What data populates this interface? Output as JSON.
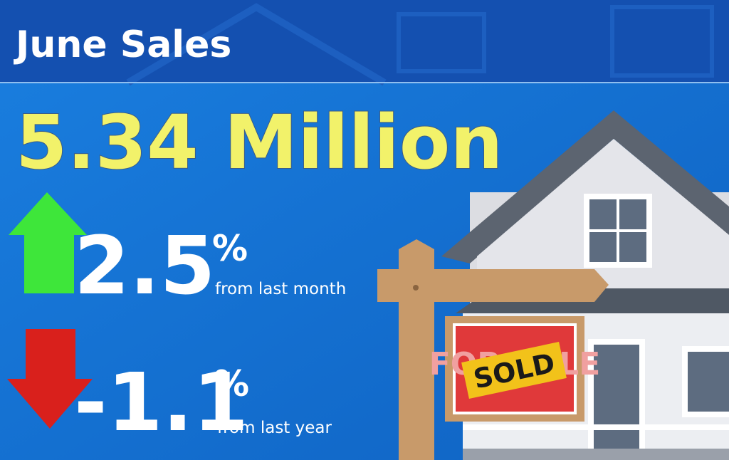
{
  "header": {
    "title": "June Sales"
  },
  "headline": "5.34 Million",
  "stats": [
    {
      "value": "2.5",
      "unit": "%",
      "caption": "from last month"
    },
    {
      "value": "-1.1",
      "unit": "%",
      "caption": "from last year"
    }
  ],
  "sign": {
    "back": "FOR SALE",
    "front": "SOLD"
  }
}
